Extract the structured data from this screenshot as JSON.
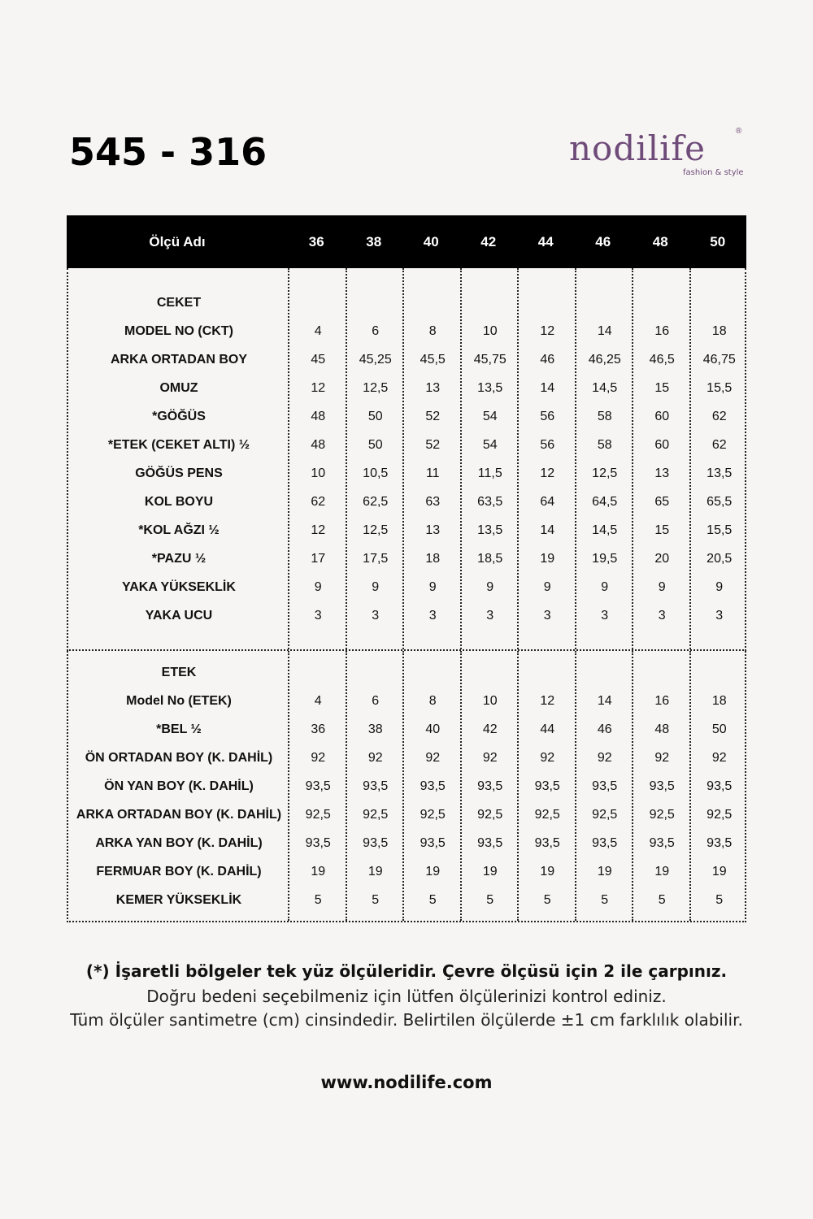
{
  "title": "545 - 316",
  "logo": {
    "text": "nodilife",
    "tagline": "fashion & style",
    "reg": "®",
    "color": "#6e4b79"
  },
  "table": {
    "header_label": "Ölçü Adı",
    "sizes": [
      "36",
      "38",
      "40",
      "42",
      "44",
      "46",
      "48",
      "50"
    ],
    "sections": [
      {
        "name": "CEKET",
        "rows": [
          {
            "label": "MODEL NO (CKT)",
            "values": [
              "4",
              "6",
              "8",
              "10",
              "12",
              "14",
              "16",
              "18"
            ]
          },
          {
            "label": "ARKA ORTADAN BOY",
            "values": [
              "45",
              "45,25",
              "45,5",
              "45,75",
              "46",
              "46,25",
              "46,5",
              "46,75"
            ]
          },
          {
            "label": "OMUZ",
            "values": [
              "12",
              "12,5",
              "13",
              "13,5",
              "14",
              "14,5",
              "15",
              "15,5"
            ]
          },
          {
            "label": "*GÖĞÜS",
            "values": [
              "48",
              "50",
              "52",
              "54",
              "56",
              "58",
              "60",
              "62"
            ]
          },
          {
            "label": "*ETEK (CEKET ALTI) ½",
            "values": [
              "48",
              "50",
              "52",
              "54",
              "56",
              "58",
              "60",
              "62"
            ]
          },
          {
            "label": "GÖĞÜS PENS",
            "values": [
              "10",
              "10,5",
              "11",
              "11,5",
              "12",
              "12,5",
              "13",
              "13,5"
            ]
          },
          {
            "label": "KOL BOYU",
            "values": [
              "62",
              "62,5",
              "63",
              "63,5",
              "64",
              "64,5",
              "65",
              "65,5"
            ]
          },
          {
            "label": "*KOL AĞZI ½",
            "values": [
              "12",
              "12,5",
              "13",
              "13,5",
              "14",
              "14,5",
              "15",
              "15,5"
            ]
          },
          {
            "label": "*PAZU ½",
            "values": [
              "17",
              "17,5",
              "18",
              "18,5",
              "19",
              "19,5",
              "20",
              "20,5"
            ]
          },
          {
            "label": "YAKA YÜKSEKLİK",
            "values": [
              "9",
              "9",
              "9",
              "9",
              "9",
              "9",
              "9",
              "9"
            ]
          },
          {
            "label": "YAKA UCU",
            "values": [
              "3",
              "3",
              "3",
              "3",
              "3",
              "3",
              "3",
              "3"
            ]
          }
        ]
      },
      {
        "name": "ETEK",
        "rows": [
          {
            "label": "Model No (ETEK)",
            "values": [
              "4",
              "6",
              "8",
              "10",
              "12",
              "14",
              "16",
              "18"
            ]
          },
          {
            "label": "*BEL ½",
            "values": [
              "36",
              "38",
              "40",
              "42",
              "44",
              "46",
              "48",
              "50"
            ]
          },
          {
            "label": "ÖN ORTADAN BOY (K. DAHİL)",
            "values": [
              "92",
              "92",
              "92",
              "92",
              "92",
              "92",
              "92",
              "92"
            ]
          },
          {
            "label": "ÖN YAN BOY (K. DAHİL)",
            "values": [
              "93,5",
              "93,5",
              "93,5",
              "93,5",
              "93,5",
              "93,5",
              "93,5",
              "93,5"
            ]
          },
          {
            "label": "ARKA ORTADAN BOY (K. DAHİL)",
            "values": [
              "92,5",
              "92,5",
              "92,5",
              "92,5",
              "92,5",
              "92,5",
              "92,5",
              "92,5"
            ]
          },
          {
            "label": "ARKA YAN BOY (K. DAHİL)",
            "values": [
              "93,5",
              "93,5",
              "93,5",
              "93,5",
              "93,5",
              "93,5",
              "93,5",
              "93,5"
            ]
          },
          {
            "label": "FERMUAR BOY (K. DAHİL)",
            "values": [
              "19",
              "19",
              "19",
              "19",
              "19",
              "19",
              "19",
              "19"
            ]
          },
          {
            "label": "KEMER YÜKSEKLİK",
            "values": [
              "5",
              "5",
              "5",
              "5",
              "5",
              "5",
              "5",
              "5"
            ]
          }
        ]
      }
    ]
  },
  "footer": {
    "note1": "(*) İşaretli bölgeler tek yüz ölçüleridir. Çevre ölçüsü için 2 ile çarpınız.",
    "note2": "Doğru bedeni seçebilmeniz için lütfen ölçülerinizi kontrol ediniz.",
    "note3": "Tüm ölçüler santimetre (cm) cinsindedir. Belirtilen ölçülerde ±1 cm farklılık olabilir.",
    "website": "www.nodilife.com"
  }
}
